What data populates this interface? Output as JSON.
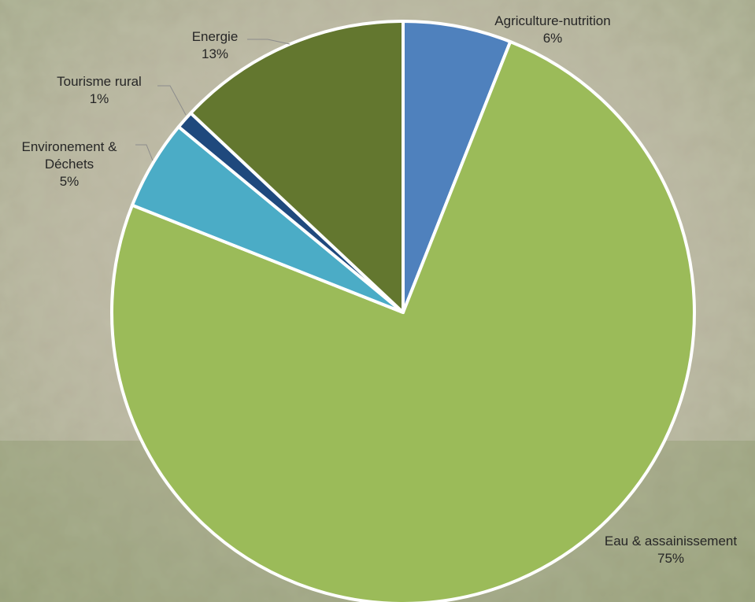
{
  "chart_data": {
    "type": "pie",
    "title": "",
    "slices": [
      {
        "name": "Agriculture-nutrition",
        "value": 6,
        "label": "6%",
        "color": "#4f81bd"
      },
      {
        "name": "Eau & assainissement",
        "value": 75,
        "label": "75%",
        "color": "#9bbb59"
      },
      {
        "name": "Environement & Déchets",
        "name_lines": [
          "Environement &",
          "Déchets"
        ],
        "value": 5,
        "label": "5%",
        "color": "#4bacc6"
      },
      {
        "name": "Tourisme rural",
        "value": 1,
        "label": "1%",
        "color": "#1f497d"
      },
      {
        "name": "Energie",
        "value": 13,
        "label": "13%",
        "color": "#63772f"
      }
    ],
    "start_angle_deg": 0,
    "direction": "clockwise",
    "slice_border_color": "#ffffff",
    "legend": "none",
    "data_labels": "category-and-percent-outside-with-leader-lines"
  },
  "background": {
    "description_colors": [
      "#b9b3a0",
      "#a9ad8c",
      "#8e9b6a",
      "#c8c0ad"
    ]
  }
}
